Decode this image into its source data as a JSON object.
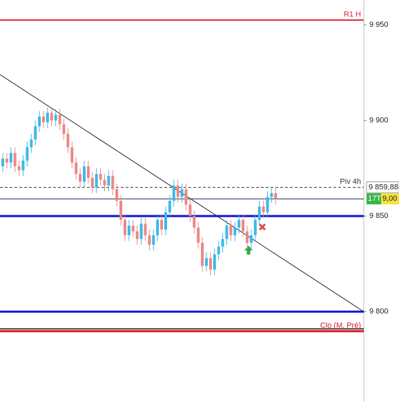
{
  "chart_data": {
    "type": "candlestick",
    "open": [
      9876,
      9880,
      9878,
      9883,
      9876,
      9874,
      9879,
      9886,
      9890,
      9897,
      9902,
      9899,
      9904,
      9900,
      9903,
      9898,
      9893,
      9886,
      9878,
      9872,
      9868,
      9876,
      9870,
      9865,
      9872,
      9869,
      9866,
      9871,
      9864,
      9858,
      9848,
      9840,
      9845,
      9842,
      9838,
      9846,
      9840,
      9835,
      9840,
      9848,
      9843,
      9852,
      9858,
      9866,
      9860,
      9864,
      9856,
      9850,
      9844,
      9836,
      9824,
      9828,
      9822,
      9830,
      9834,
      9838,
      9845,
      9840,
      9844,
      9848,
      9842,
      9836,
      9840,
      9848,
      9855,
      9852,
      9860,
      9862
    ],
    "high": [
      9883,
      9883,
      9886,
      9886,
      9879,
      9882,
      9889,
      9893,
      9900,
      9905,
      9905,
      9907,
      9907,
      9906,
      9906,
      9901,
      9896,
      9889,
      9881,
      9875,
      9879,
      9879,
      9873,
      9875,
      9875,
      9872,
      9874,
      9874,
      9867,
      9861,
      9851,
      9848,
      9848,
      9845,
      9849,
      9849,
      9843,
      9843,
      9851,
      9851,
      9855,
      9861,
      9869,
      9869,
      9867,
      9867,
      9859,
      9853,
      9847,
      9839,
      9831,
      9831,
      9833,
      9837,
      9841,
      9848,
      9848,
      9847,
      9851,
      9851,
      9845,
      9843,
      9851,
      9858,
      9858,
      9863,
      9865,
      9865
    ],
    "low": [
      9873,
      9875,
      9875,
      9873,
      9871,
      9871,
      9876,
      9883,
      9887,
      9894,
      9896,
      9896,
      9897,
      9897,
      9895,
      9890,
      9883,
      9875,
      9869,
      9865,
      9865,
      9867,
      9862,
      9862,
      9866,
      9863,
      9863,
      9861,
      9855,
      9845,
      9837,
      9837,
      9839,
      9835,
      9835,
      9837,
      9832,
      9832,
      9837,
      9840,
      9840,
      9849,
      9855,
      9857,
      9857,
      9853,
      9847,
      9841,
      9833,
      9821,
      9821,
      9819,
      9819,
      9827,
      9831,
      9835,
      9837,
      9837,
      9841,
      9839,
      9833,
      9833,
      9837,
      9845,
      9849,
      9849,
      9857,
      9856
    ],
    "close": [
      9880,
      9878,
      9883,
      9876,
      9874,
      9879,
      9886,
      9890,
      9897,
      9902,
      9899,
      9904,
      9900,
      9903,
      9898,
      9893,
      9886,
      9878,
      9872,
      9868,
      9876,
      9870,
      9865,
      9872,
      9869,
      9866,
      9871,
      9864,
      9858,
      9848,
      9840,
      9845,
      9842,
      9838,
      9846,
      9840,
      9835,
      9840,
      9848,
      9843,
      9852,
      9858,
      9866,
      9860,
      9864,
      9856,
      9850,
      9844,
      9836,
      9824,
      9828,
      9822,
      9830,
      9834,
      9838,
      9845,
      9840,
      9844,
      9848,
      9842,
      9836,
      9840,
      9848,
      9855,
      9852,
      9860,
      9862,
      9859
    ],
    "up_color": "#3bb9e8",
    "down_color": "#ec8884",
    "ylim": [
      9753,
      9963
    ],
    "yticks": [
      {
        "value": 9800,
        "label": "9 800"
      },
      {
        "value": 9850,
        "label": "9 850"
      },
      {
        "value": 9900,
        "label": "9 900"
      },
      {
        "value": 9950,
        "label": "9 950"
      }
    ],
    "levels": [
      {
        "name": "R1 H",
        "value": 9952.5,
        "color": "#e0203a",
        "width": 2
      },
      {
        "name": "Piv 4h",
        "value": 9865,
        "color": "#333333",
        "width": 1,
        "dash": true,
        "price_label": "9 859,88"
      },
      {
        "value": 9859,
        "color": "#1a2a5c",
        "width": 1,
        "tag": "17T",
        "price_label": "9,00"
      },
      {
        "value": 9850,
        "color": "#1010d0",
        "width": 3
      },
      {
        "value": 9800,
        "color": "#1010d0",
        "width": 3
      },
      {
        "value": 9791,
        "color": "#111111",
        "width": 1.5
      },
      {
        "name": "Clo (M, Pré)",
        "value": 9789.8,
        "color": "#e0101a",
        "width": 3
      }
    ],
    "trendline": {
      "start": 9924,
      "end": 9800,
      "color": "#222222"
    }
  }
}
